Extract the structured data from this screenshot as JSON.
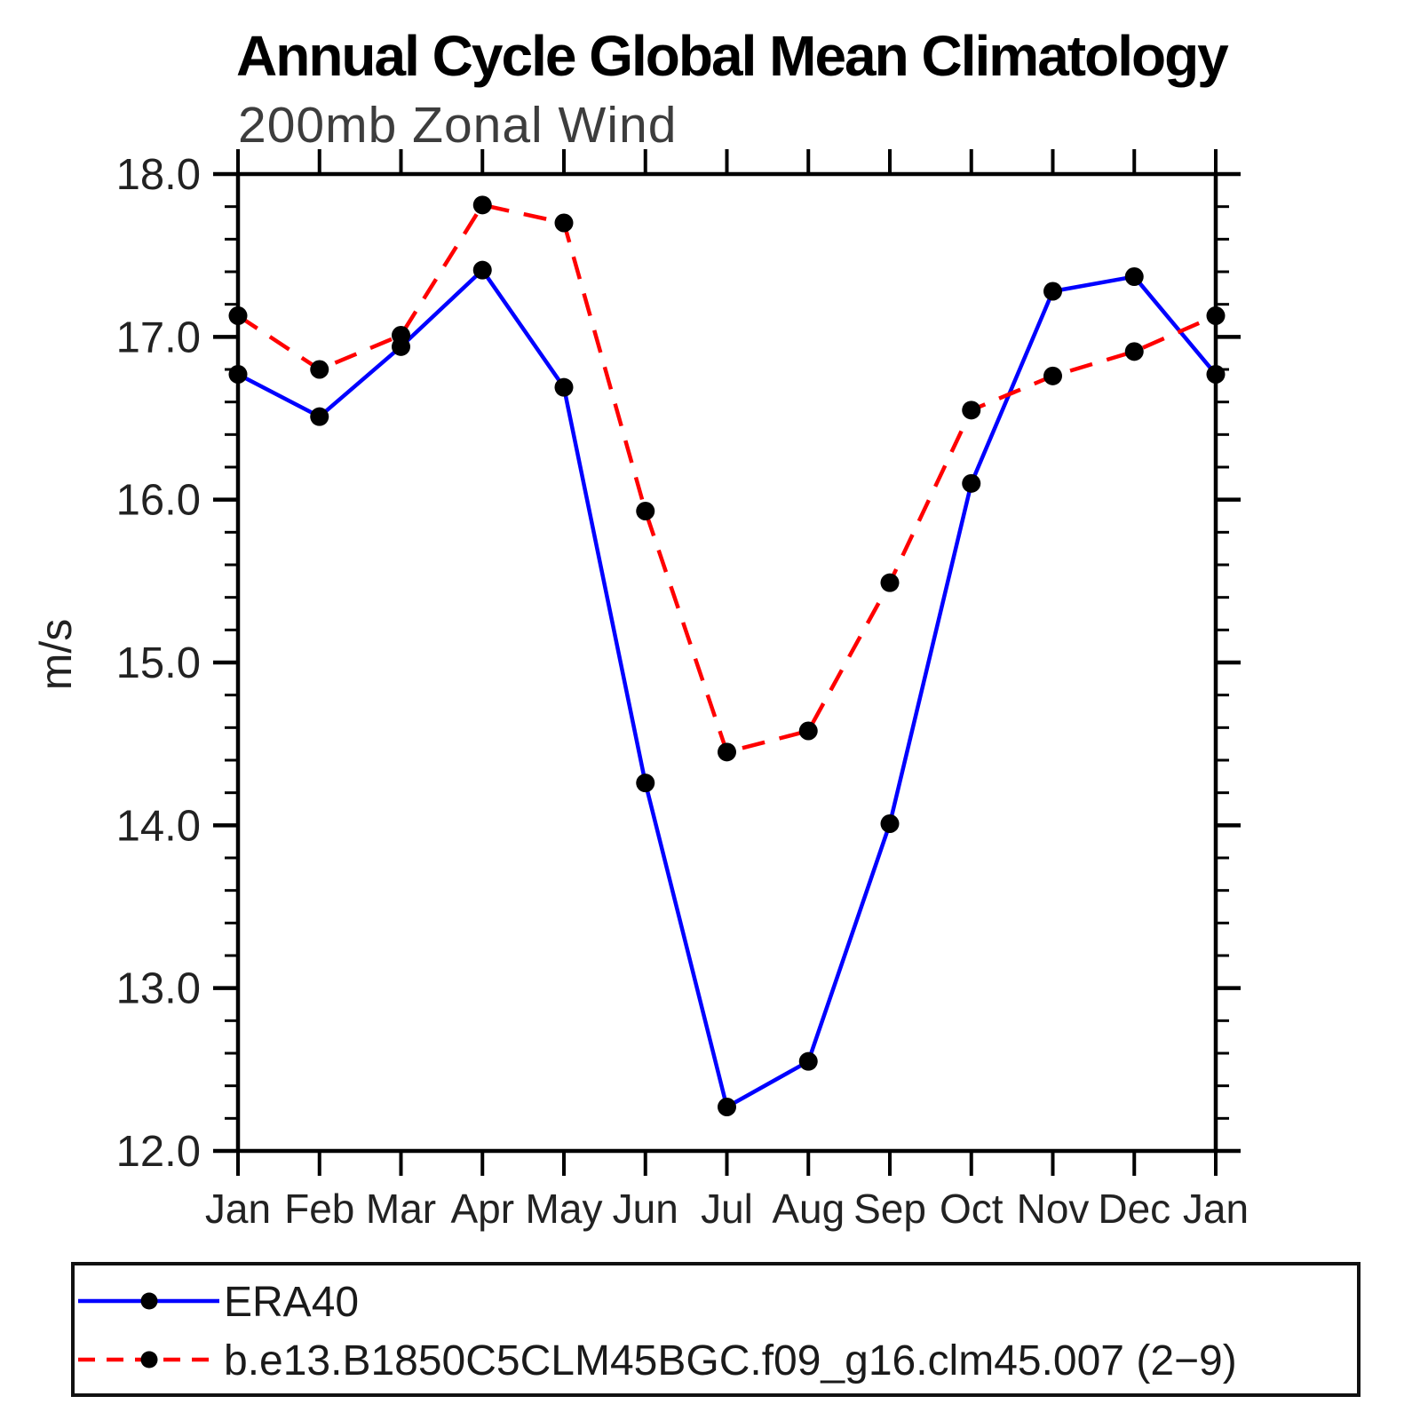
{
  "chart_data": {
    "type": "line",
    "title": "Annual Cycle Global Mean Climatology",
    "subtitle": "200mb Zonal Wind",
    "ylabel": "m/s",
    "xlabel": "",
    "ylim": [
      12.0,
      18.0
    ],
    "ytick_step": 1.0,
    "yminor_step": 0.2,
    "ytick_labels": [
      "12.0",
      "13.0",
      "14.0",
      "15.0",
      "16.0",
      "17.0",
      "18.0"
    ],
    "categories": [
      "Jan",
      "Feb",
      "Mar",
      "Apr",
      "May",
      "Jun",
      "Jul",
      "Aug",
      "Sep",
      "Oct",
      "Nov",
      "Dec",
      "Jan"
    ],
    "grid": false,
    "legend_position": "bottom-left-box",
    "axis_color": "#000000",
    "background_color": "#ffffff",
    "series": [
      {
        "name": "ERA40",
        "color": "#0000ff",
        "line_style": "solid",
        "marker": "filled-circle",
        "marker_color": "#000000",
        "values": [
          16.77,
          16.51,
          16.94,
          17.41,
          16.69,
          14.26,
          12.27,
          12.55,
          14.01,
          16.1,
          17.28,
          17.37,
          16.77
        ]
      },
      {
        "name": "b.e13.B1850C5CLM45BGC.f09_g16.clm45.007 (2−9)",
        "color": "#ff0000",
        "line_style": "dashed",
        "marker": "filled-circle",
        "marker_color": "#000000",
        "values": [
          17.13,
          16.8,
          17.01,
          17.81,
          17.7,
          15.93,
          14.45,
          14.58,
          15.49,
          16.55,
          16.76,
          16.91,
          17.13
        ]
      }
    ]
  }
}
